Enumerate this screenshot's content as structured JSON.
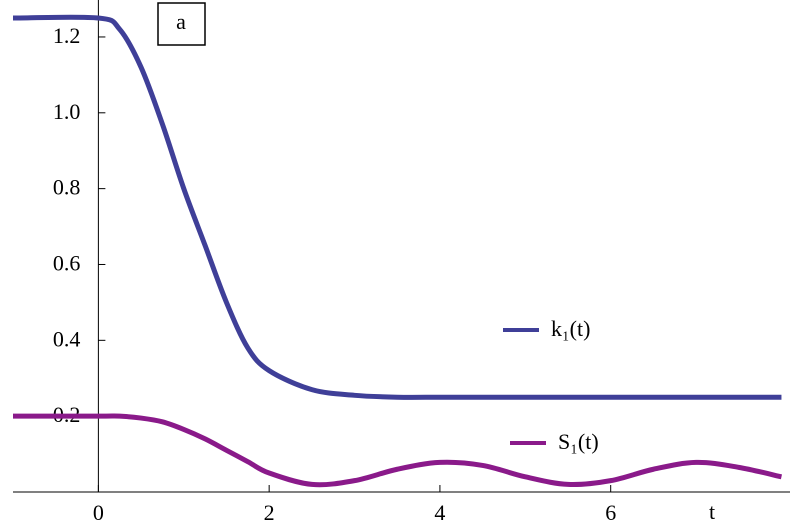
{
  "chart_data": {
    "type": "line",
    "panel_label": "a",
    "xlabel": "t",
    "x": [
      -1,
      0,
      0.25,
      0.5,
      0.75,
      1,
      1.25,
      1.5,
      1.75,
      2,
      2.5,
      3,
      3.5,
      4,
      4.5,
      5,
      5.5,
      6,
      6.5,
      7,
      7.5,
      8
    ],
    "series": [
      {
        "name": "k₁(t)",
        "color": "#3f3f98",
        "values": [
          1.25,
          1.25,
          1.22,
          1.12,
          0.97,
          0.8,
          0.65,
          0.5,
          0.38,
          0.32,
          0.27,
          0.255,
          0.25,
          0.25,
          0.25,
          0.25,
          0.25,
          0.25,
          0.25,
          0.25,
          0.25,
          0.25
        ]
      },
      {
        "name": "S₁(t)",
        "color": "#8a1a8a",
        "values": [
          0.2,
          0.2,
          0.2,
          0.195,
          0.185,
          0.165,
          0.14,
          0.11,
          0.08,
          0.05,
          0.02,
          0.03,
          0.06,
          0.078,
          0.07,
          0.04,
          0.02,
          0.03,
          0.06,
          0.078,
          0.065,
          0.04
        ]
      }
    ],
    "xlim": [
      -1,
      8.1
    ],
    "ylim": [
      0,
      1.25
    ],
    "xticks": [
      0,
      2,
      4,
      6
    ],
    "yticks": [
      0.2,
      0.4,
      0.6,
      0.8,
      {
        "value": 1,
        "label": "1.0"
      },
      1.2
    ]
  }
}
